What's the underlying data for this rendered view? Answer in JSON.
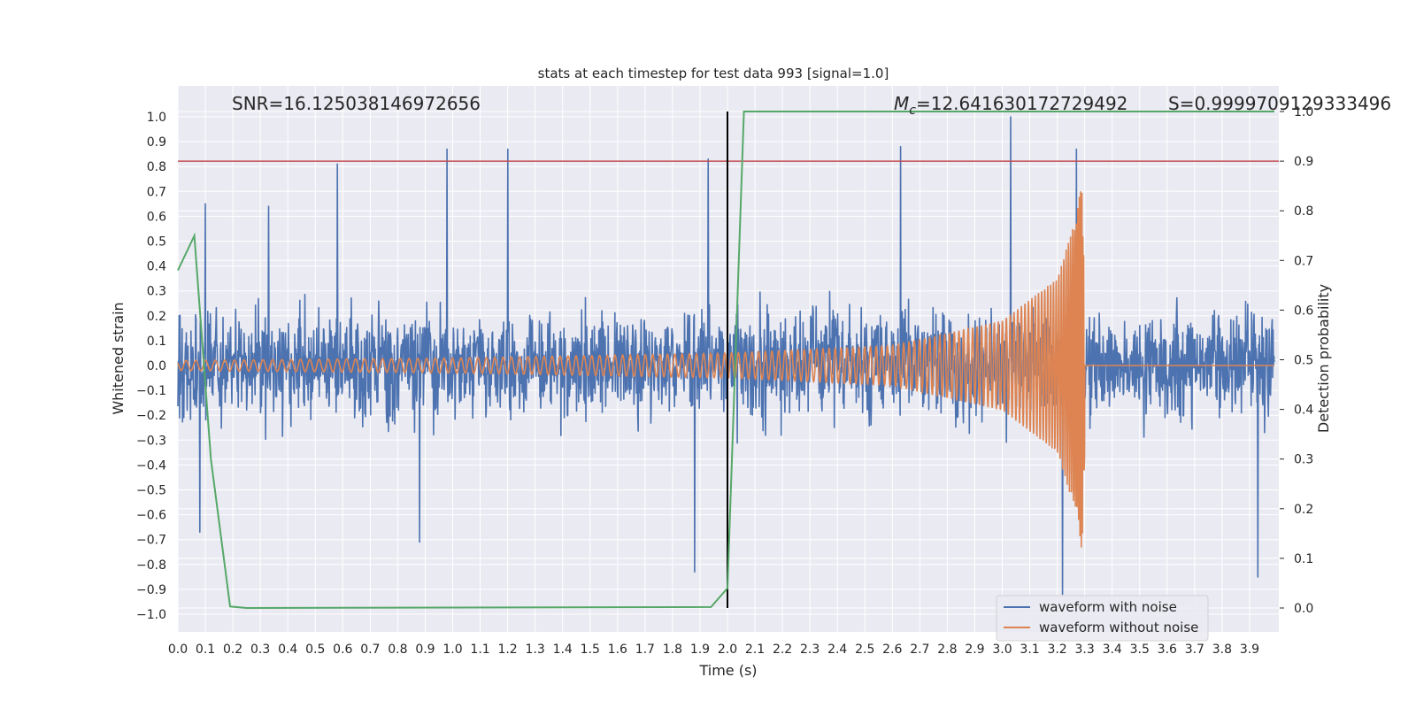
{
  "chart_data": {
    "type": "line",
    "title": "stats at each timestep for test data 993 [signal=1.0]",
    "xlabel": "Time (s)",
    "ylabel_left": "Whitened strain",
    "ylabel_right": "Detection probability",
    "xlim": [
      0.0,
      3.99
    ],
    "ylim_left": [
      -1.08,
      1.1
    ],
    "ylim_right": [
      -0.05,
      1.0
    ],
    "x_ticks": [
      "0.0",
      "0.1",
      "0.2",
      "0.3",
      "0.4",
      "0.5",
      "0.6",
      "0.7",
      "0.8",
      "0.9",
      "1.0",
      "1.1",
      "1.2",
      "1.3",
      "1.4",
      "1.5",
      "1.6",
      "1.7",
      "1.8",
      "1.9",
      "2.0",
      "2.1",
      "2.2",
      "2.3",
      "2.4",
      "2.5",
      "2.6",
      "2.7",
      "2.8",
      "2.9",
      "3.0",
      "3.1",
      "3.2",
      "3.3",
      "3.4",
      "3.5",
      "3.6",
      "3.7",
      "3.8",
      "3.9"
    ],
    "y_ticks_left": [
      "1.0",
      "0.9",
      "0.8",
      "0.7",
      "0.6",
      "0.5",
      "0.4",
      "0.3",
      "0.2",
      "0.1",
      "0.0",
      "−0.1",
      "−0.2",
      "−0.3",
      "−0.4",
      "−0.5",
      "−0.6",
      "−0.7",
      "−0.8",
      "−0.9",
      "−1.0"
    ],
    "y_ticks_right": [
      "1.0",
      "0.9",
      "0.8",
      "0.7",
      "0.6",
      "0.5",
      "0.4",
      "0.3",
      "0.2",
      "0.1",
      "0.0"
    ],
    "grid": true,
    "legend": {
      "placement": "lower-right",
      "entries": [
        {
          "label": "waveform with noise",
          "color": "#4c72b0"
        },
        {
          "label": "waveform without noise",
          "color": "#dd8452"
        }
      ]
    },
    "annotations": {
      "snr": "SNR=16.125038146972656",
      "mc_symbol": "M",
      "mc_subscript": "c",
      "mc_value": "=12.641630172729492",
      "s": "S=0.9999709129333496"
    },
    "colors": {
      "background": "#eaeaf2",
      "grid": "#ffffff",
      "noise": "#4c72b0",
      "clean": "#dd8452",
      "probability": "#55a868",
      "threshold": "#c44e52",
      "marker": "#000000"
    },
    "threshold_right": 0.9,
    "marker_time": 2.0,
    "noise_waveform": {
      "description_units": "whitened strain, approx. envelope",
      "x_range": [
        0.0,
        3.99
      ],
      "typical_max": 0.35,
      "typical_min": -0.35,
      "peak_values": [
        {
          "x": 0.1,
          "y": 0.65
        },
        {
          "x": 0.33,
          "y": 0.64
        },
        {
          "x": 0.58,
          "y": 0.81
        },
        {
          "x": 0.98,
          "y": 0.87
        },
        {
          "x": 1.2,
          "y": 0.87
        },
        {
          "x": 1.93,
          "y": 0.83
        },
        {
          "x": 2.63,
          "y": 0.88
        },
        {
          "x": 3.03,
          "y": 1.0
        },
        {
          "x": 3.27,
          "y": 0.87
        },
        {
          "x": 0.08,
          "y": -0.67
        },
        {
          "x": 0.88,
          "y": -0.71
        },
        {
          "x": 1.88,
          "y": -0.83
        },
        {
          "x": 3.22,
          "y": -0.92
        },
        {
          "x": 3.93,
          "y": -0.85
        }
      ]
    },
    "clean_waveform": {
      "description_units": "whitened strain",
      "amplitude_points": [
        {
          "x": 0.0,
          "amp": 0.02
        },
        {
          "x": 1.0,
          "amp": 0.03
        },
        {
          "x": 2.0,
          "amp": 0.05
        },
        {
          "x": 2.6,
          "amp": 0.08
        },
        {
          "x": 3.0,
          "amp": 0.18
        },
        {
          "x": 3.2,
          "amp": 0.35
        },
        {
          "x": 3.27,
          "amp": 0.6
        },
        {
          "x": 3.29,
          "amp": 0.75
        },
        {
          "x": 3.31,
          "amp": 0.0
        },
        {
          "x": 3.99,
          "amp": 0.0
        }
      ],
      "merger_time": 3.3
    },
    "probability_series": {
      "name": "detection probability",
      "x": [
        0.0,
        0.06,
        0.12,
        0.19,
        0.25,
        1.94,
        2.0,
        2.06,
        3.99
      ],
      "y": [
        0.68,
        0.75,
        0.3,
        0.003,
        0.0,
        0.002,
        0.04,
        1.0,
        1.0
      ]
    }
  }
}
